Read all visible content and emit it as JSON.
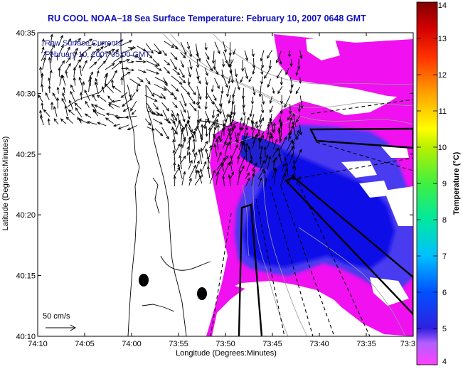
{
  "chart_data": {
    "type": "heatmap",
    "title": "RU COOL  NOAA–18  Sea Surface Temperature:  February 10, 2007 0648 GMT",
    "xlabel": "Longitude (Degrees:Minutes)",
    "ylabel": "Latitude (Degrees:Minutes)",
    "x_ticks": [
      "74:10",
      "74:05",
      "74:00",
      "73:55",
      "73:50",
      "73:45",
      "73:40",
      "73:35",
      "73:3"
    ],
    "y_ticks": [
      "40:35",
      "40:30",
      "40:25",
      "40:20",
      "40:15",
      "40:10"
    ],
    "xlim": [
      "74:10",
      "73:30"
    ],
    "ylim": [
      "40:10",
      "40:35"
    ],
    "legend": {
      "line1": "Raw Surface Currents",
      "line2": "February 10, 2007 05:00 GMT"
    },
    "scale_label": "50 cm/s",
    "colorbar": {
      "label": "Temperature (°C)",
      "ticks": [
        4,
        5,
        6,
        7,
        8,
        9,
        10,
        11,
        12,
        13,
        14
      ],
      "range": [
        4,
        14
      ]
    },
    "colors": {
      "land": "#ffffff",
      "warm_shelf": "#ff00ff",
      "cold_core": "#1010e8",
      "title": "#1010c0",
      "legend_text": "#1a1aa8"
    }
  }
}
